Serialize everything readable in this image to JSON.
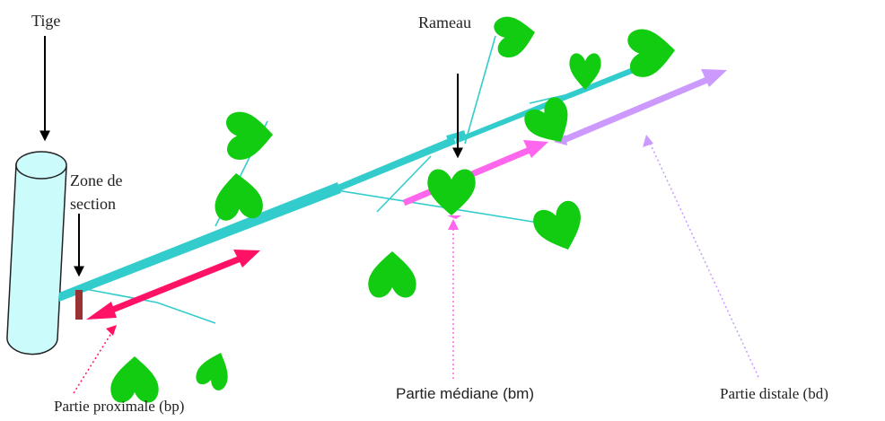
{
  "labels": {
    "tige": "Tige",
    "rameau": "Rameau",
    "zone_line1": "Zone de",
    "zone_line2": "section",
    "proximale": "Partie proximale (bp)",
    "mediane": "Partie médiane (bm)",
    "distale": "Partie distale (bd)"
  },
  "colors": {
    "stem_fill": "#ccfbfb",
    "branch": "#33cccc",
    "leaf": "#11cc11",
    "proximal_arrow": "#ff1166",
    "median_arrow": "#ff66ee",
    "distal_arrow": "#cc99ff",
    "section_mark": "#993333"
  }
}
